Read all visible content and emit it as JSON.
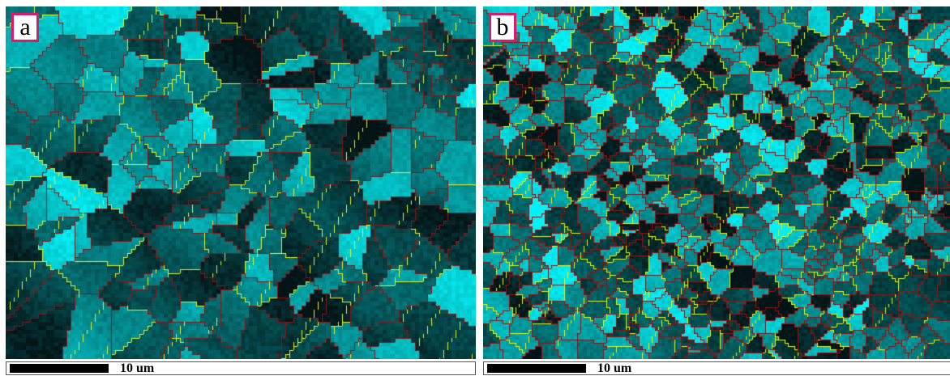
{
  "panels": [
    {
      "id": "a",
      "label": "a",
      "scale_label": "10 um",
      "color_scheme": "cyan-intensity",
      "grain_density": "coarse"
    },
    {
      "id": "b",
      "label": "b",
      "scale_label": "10 um",
      "color_scheme": "cyan-intensity",
      "grain_density": "fine"
    }
  ],
  "colors": {
    "high_angle_boundary": "#8a1515",
    "low_angle_boundary": "#e6f020",
    "intensity_base": "#00e5e8",
    "label_border": "#d81b6a"
  }
}
